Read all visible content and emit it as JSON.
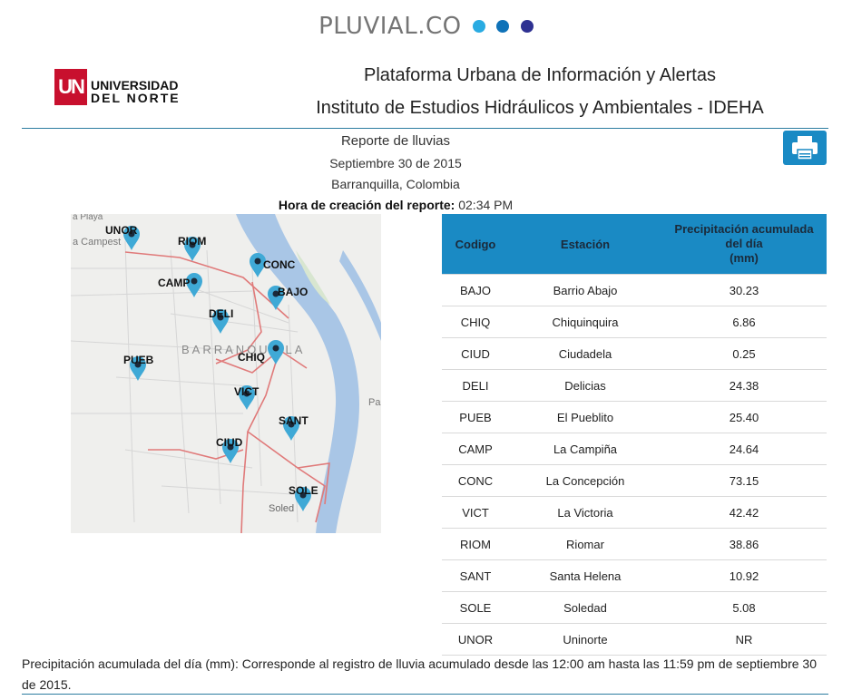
{
  "brand": {
    "name": "PLUVIAL.CO",
    "dot_colors": [
      "#29abe2",
      "#0f72b8",
      "#2e3192"
    ]
  },
  "university": {
    "mark": "UN",
    "line1": "UNIVERSIDAD",
    "line2": "DEL NORTE",
    "color": "#c8102e"
  },
  "header": {
    "title1": "Plataforma Urbana de Información y Alertas",
    "title2": "Instituto de Estudios Hidráulicos y Ambientales - IDEHA"
  },
  "report": {
    "title": "Reporte de lluvias",
    "date": "Septiembre 30 de 2015",
    "location": "Barranquilla, Colombia",
    "time_label": "Hora de creación del reporte:",
    "time_value": "02:34 PM",
    "print_icon": "printer-icon"
  },
  "map": {
    "city_label": "BARRANQUILLA",
    "places": [
      "a Playa",
      "a Campest",
      "Soled",
      "Pa"
    ],
    "stations": [
      "UNOR",
      "RIOM",
      "CONC",
      "CAMP",
      "BAJO",
      "DELI",
      "CHIQ",
      "PUEB",
      "VICT",
      "SANT",
      "CIUD",
      "SOLE"
    ],
    "river_color": "#a9c6e6",
    "road_color": "#e07a7a",
    "pin_color": "#3fa9d6"
  },
  "table": {
    "headers": [
      "Codigo",
      "Estación",
      "Precipitación acumulada del día\n(mm)"
    ],
    "header_bg": "#1a8ac4",
    "rows": [
      [
        "BAJO",
        "Barrio Abajo",
        "30.23"
      ],
      [
        "CHIQ",
        "Chiquinquira",
        "6.86"
      ],
      [
        "CIUD",
        "Ciudadela",
        "0.25"
      ],
      [
        "DELI",
        "Delicias",
        "24.38"
      ],
      [
        "PUEB",
        "El Pueblito",
        "25.40"
      ],
      [
        "CAMP",
        "La Campiña",
        "24.64"
      ],
      [
        "CONC",
        "La Concepción",
        "73.15"
      ],
      [
        "VICT",
        "La Victoria",
        "42.42"
      ],
      [
        "RIOM",
        "Riomar",
        "38.86"
      ],
      [
        "SANT",
        "Santa Helena",
        "10.92"
      ],
      [
        "SOLE",
        "Soledad",
        "5.08"
      ],
      [
        "UNOR",
        "Uninorte",
        "NR"
      ]
    ]
  },
  "footnote": "Precipitación acumulada del día (mm): Corresponde al registro de lluvia acumulado desde las 12:00 am hasta las 11:59 pm de septiembre 30 de 2015."
}
